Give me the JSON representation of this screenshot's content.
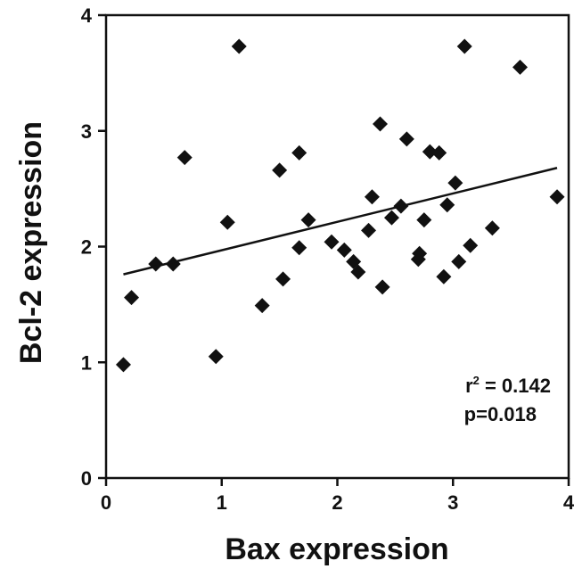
{
  "chart_data": {
    "type": "scatter",
    "xlabel": "Bax expression",
    "ylabel": "Bcl-2 expression",
    "xlim": [
      0,
      4
    ],
    "ylim": [
      0,
      4
    ],
    "xticks": [
      "0",
      "1",
      "2",
      "3",
      "4"
    ],
    "yticks": [
      "0",
      "1",
      "2",
      "3",
      "4"
    ],
    "grid": false,
    "marker": "diamond",
    "points": [
      {
        "x": 0.15,
        "y": 0.98
      },
      {
        "x": 0.22,
        "y": 1.56
      },
      {
        "x": 0.43,
        "y": 1.85
      },
      {
        "x": 0.58,
        "y": 1.85
      },
      {
        "x": 0.68,
        "y": 2.77
      },
      {
        "x": 0.95,
        "y": 1.05
      },
      {
        "x": 1.05,
        "y": 2.21
      },
      {
        "x": 1.15,
        "y": 3.73
      },
      {
        "x": 1.35,
        "y": 1.49
      },
      {
        "x": 1.5,
        "y": 2.66
      },
      {
        "x": 1.53,
        "y": 1.72
      },
      {
        "x": 1.67,
        "y": 2.81
      },
      {
        "x": 1.67,
        "y": 1.99
      },
      {
        "x": 1.75,
        "y": 2.23
      },
      {
        "x": 1.95,
        "y": 2.04
      },
      {
        "x": 2.06,
        "y": 1.97
      },
      {
        "x": 2.14,
        "y": 1.87
      },
      {
        "x": 2.18,
        "y": 1.78
      },
      {
        "x": 2.27,
        "y": 2.14
      },
      {
        "x": 2.3,
        "y": 2.43
      },
      {
        "x": 2.37,
        "y": 3.06
      },
      {
        "x": 2.39,
        "y": 1.65
      },
      {
        "x": 2.47,
        "y": 2.25
      },
      {
        "x": 2.55,
        "y": 2.35
      },
      {
        "x": 2.6,
        "y": 2.93
      },
      {
        "x": 2.7,
        "y": 1.89
      },
      {
        "x": 2.71,
        "y": 1.94
      },
      {
        "x": 2.75,
        "y": 2.23
      },
      {
        "x": 2.8,
        "y": 2.82
      },
      {
        "x": 2.88,
        "y": 2.81
      },
      {
        "x": 2.92,
        "y": 1.74
      },
      {
        "x": 2.95,
        "y": 2.36
      },
      {
        "x": 3.02,
        "y": 2.55
      },
      {
        "x": 3.05,
        "y": 1.87
      },
      {
        "x": 3.1,
        "y": 3.73
      },
      {
        "x": 3.15,
        "y": 2.01
      },
      {
        "x": 3.34,
        "y": 2.16
      },
      {
        "x": 3.58,
        "y": 3.55
      },
      {
        "x": 3.9,
        "y": 2.43
      }
    ],
    "trendline": {
      "x": [
        0.15,
        3.9
      ],
      "y": [
        1.76,
        2.68
      ]
    },
    "annotations": {
      "r2_prefix": "r",
      "r2_sup": "2",
      "r2_value": " = 0.142",
      "p": "p=0.018"
    }
  }
}
